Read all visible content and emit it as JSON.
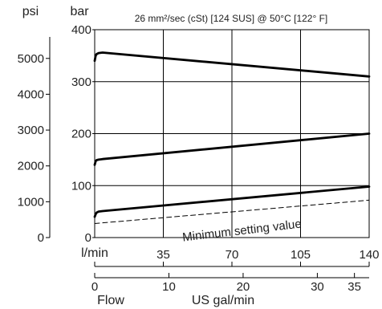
{
  "chart_data": {
    "type": "line",
    "title": "26 mm²/sec (cSt) [124 SUS] @ 50°C [122° F]",
    "left_unit": "psi",
    "pressure_unit": "bar",
    "flow_unit": "l/min",
    "us_flow_unit": "US gal/min",
    "xlabel": "Flow",
    "xlim": [
      0,
      140
    ],
    "ylim": [
      0,
      400
    ],
    "x_ticks": [
      "0",
      "35",
      "70",
      "105",
      "140"
    ],
    "y_ticks": [
      "0",
      "100",
      "200",
      "300",
      "400"
    ],
    "psi_ticks": [
      "0",
      "1000",
      "2000",
      "3000",
      "4000",
      "5000"
    ],
    "gal_ticks": [
      "0",
      "10",
      "20",
      "30",
      "35"
    ],
    "grid": true,
    "annotation": "Minimum setting value",
    "series": [
      {
        "x": [
          0,
          0.5,
          1,
          2,
          4,
          140
        ],
        "y": [
          340,
          350,
          353,
          355,
          356,
          310
        ]
      },
      {
        "x": [
          0,
          0.5,
          1,
          2,
          4,
          140
        ],
        "y": [
          140,
          147,
          149,
          150,
          151,
          200
        ]
      },
      {
        "x": [
          0,
          0.5,
          1,
          2,
          4,
          140
        ],
        "y": [
          40,
          45,
          48,
          50,
          51,
          98
        ]
      },
      {
        "x": [
          0,
          140
        ],
        "y": [
          27,
          72
        ],
        "style": "dashed"
      }
    ]
  }
}
